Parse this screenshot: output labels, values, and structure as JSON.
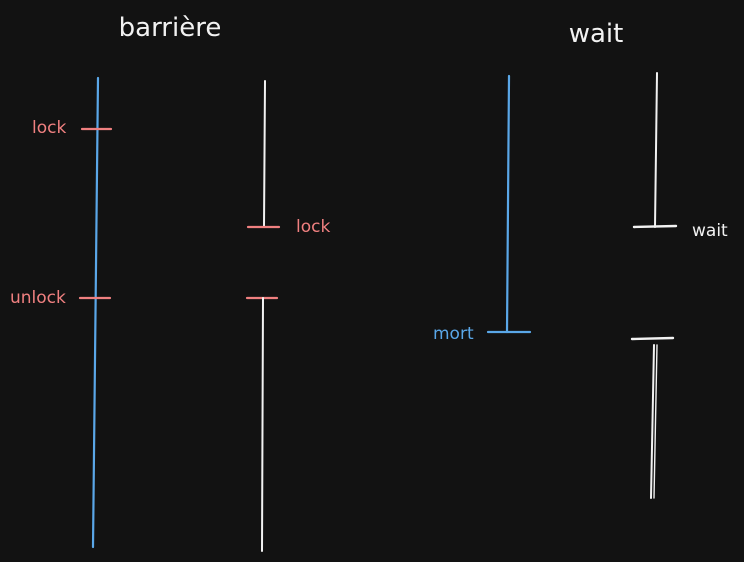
{
  "colors": {
    "background": "#121212",
    "blue": "#5aa7e8",
    "red": "#f08080",
    "white": "#f2f2f2"
  },
  "left_panel": {
    "title": "barrière",
    "lock_label_thread1": "lock",
    "unlock_label_thread1": "unlock",
    "lock_label_thread2": "lock"
  },
  "right_panel": {
    "title": "wait",
    "mort_label": "mort",
    "wait_label": "wait"
  }
}
